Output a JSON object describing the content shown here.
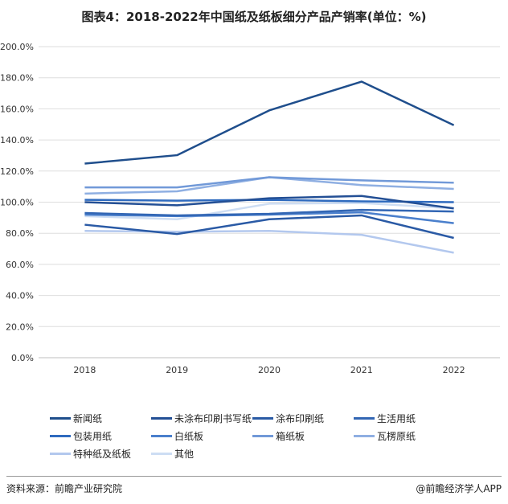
{
  "chart_data": {
    "type": "line",
    "title": "图表4：2018-2022年中国纸及纸板细分产品产销率(单位：%)",
    "xlabel": "",
    "ylabel": "",
    "categories": [
      "2018",
      "2019",
      "2020",
      "2021",
      "2022"
    ],
    "y_ticks": [
      "0.0%",
      "20.0%",
      "40.0%",
      "60.0%",
      "80.0%",
      "100.0%",
      "120.0%",
      "140.0%",
      "160.0%",
      "180.0%",
      "200.0%"
    ],
    "ylim": [
      0,
      200
    ],
    "grid": true,
    "legend_position": "bottom",
    "series": [
      {
        "name": "新闻纸",
        "color": "#1f4e8c",
        "values": [
          124.8,
          130.2,
          159.0,
          177.5,
          149.5
        ]
      },
      {
        "name": "未涂布印刷书写纸",
        "color": "#234f95",
        "values": [
          100.0,
          98.0,
          102.5,
          104.0,
          96.0
        ]
      },
      {
        "name": "涂布印刷纸",
        "color": "#2a5aa5",
        "values": [
          85.5,
          79.5,
          89.0,
          91.5,
          77.0
        ]
      },
      {
        "name": "生活用纸",
        "color": "#3266b4",
        "values": [
          93.0,
          91.5,
          92.5,
          95.0,
          94.0
        ]
      },
      {
        "name": "包装用纸",
        "color": "#2f6bbf",
        "values": [
          101.5,
          101.0,
          101.5,
          100.5,
          100.0
        ]
      },
      {
        "name": "白纸板",
        "color": "#4a7fcc",
        "values": [
          92.0,
          91.0,
          92.0,
          93.5,
          86.5
        ]
      },
      {
        "name": "箱纸板",
        "color": "#7199d8",
        "values": [
          109.5,
          109.5,
          116.0,
          114.0,
          112.5
        ]
      },
      {
        "name": "瓦楞原纸",
        "color": "#8fafe2",
        "values": [
          105.5,
          107.0,
          116.0,
          111.0,
          108.5
        ]
      },
      {
        "name": "特种纸及纸板",
        "color": "#b3c8ee",
        "values": [
          81.5,
          81.0,
          81.5,
          79.0,
          67.5
        ]
      },
      {
        "name": "其他",
        "color": "#cdddf3",
        "values": [
          91.0,
          89.0,
          99.0,
          99.5,
          96.0
        ]
      }
    ]
  },
  "footer": {
    "source": "资料来源：前瞻产业研究院",
    "credit": "@前瞻经济学人APP"
  }
}
